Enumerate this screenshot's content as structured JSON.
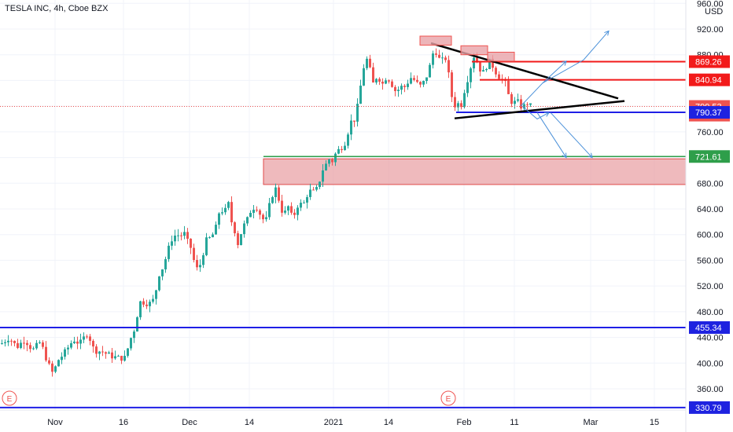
{
  "header": {
    "title": "TESLA INC, 4h, Cboe BZX"
  },
  "axis": {
    "currency": "USD"
  },
  "colors": {
    "up": "#26a69a",
    "down": "#ef5350",
    "support_line": "#1f1fe6",
    "resistance_line": "#f21a1a",
    "price_tag": "#ef5350",
    "green_tag": "#2e9e4a",
    "blue_tag": "#1e22e0",
    "zone_fill": "#e9a3a7",
    "projection": "#4a90d9"
  },
  "chart_data": {
    "type": "candlestick",
    "title": "TESLA INC, 4h, Cboe BZX",
    "ylabel": "USD",
    "ylim": [
      320,
      965
    ],
    "xlim": [
      0,
      932
    ],
    "y_ticks": [
      "960.00",
      "920.00",
      "880.00",
      "840.00",
      "800.00",
      "760.00",
      "720.00",
      "680.00",
      "640.00",
      "600.00",
      "560.00",
      "520.00",
      "480.00",
      "440.00",
      "400.00",
      "360.00"
    ],
    "x_ticks": [
      {
        "label": "Nov",
        "x": 70
      },
      {
        "label": "16",
        "x": 157
      },
      {
        "label": "Dec",
        "x": 241
      },
      {
        "label": "14",
        "x": 317
      },
      {
        "label": "2021",
        "x": 424
      },
      {
        "label": "14",
        "x": 494
      },
      {
        "label": "Feb",
        "x": 590
      },
      {
        "label": "11",
        "x": 654
      },
      {
        "label": "Mar",
        "x": 751
      },
      {
        "label": "15",
        "x": 832
      }
    ],
    "price_levels": [
      {
        "label": "869.26",
        "value": 869.26,
        "kind": "resistance"
      },
      {
        "label": "840.94",
        "value": 840.94,
        "kind": "resistance"
      },
      {
        "label": "799.53",
        "value": 799.53,
        "kind": "last"
      },
      {
        "label": "01:10:29",
        "value": 786.0,
        "kind": "countdown"
      },
      {
        "label": "790.37",
        "value": 790.37,
        "kind": "support"
      },
      {
        "label": "721.61",
        "value": 721.61,
        "kind": "green"
      },
      {
        "label": "455.34",
        "value": 455.34,
        "kind": "support"
      },
      {
        "label": "330.79",
        "value": 330.79,
        "kind": "support"
      }
    ],
    "zone": {
      "from": 678,
      "to": 718,
      "x_start": 335
    },
    "events": [
      {
        "label": "E",
        "x": 12
      },
      {
        "label": "E",
        "x": 570
      }
    ],
    "waypoints": [
      [
        0,
        430
      ],
      [
        10,
        440
      ],
      [
        20,
        425
      ],
      [
        30,
        437
      ],
      [
        40,
        420
      ],
      [
        50,
        433
      ],
      [
        60,
        398
      ],
      [
        66,
        383
      ],
      [
        72,
        404
      ],
      [
        80,
        415
      ],
      [
        92,
        437
      ],
      [
        100,
        430
      ],
      [
        110,
        448
      ],
      [
        118,
        420
      ],
      [
        128,
        418
      ],
      [
        138,
        412
      ],
      [
        148,
        408
      ],
      [
        158,
        408
      ],
      [
        163,
        433
      ],
      [
        170,
        455
      ],
      [
        176,
        495
      ],
      [
        182,
        495
      ],
      [
        188,
        492
      ],
      [
        195,
        500
      ],
      [
        200,
        537
      ],
      [
        206,
        550
      ],
      [
        212,
        575
      ],
      [
        218,
        597
      ],
      [
        224,
        600
      ],
      [
        228,
        597
      ],
      [
        232,
        605
      ],
      [
        236,
        590
      ],
      [
        240,
        585
      ],
      [
        248,
        545
      ],
      [
        254,
        555
      ],
      [
        260,
        590
      ],
      [
        266,
        595
      ],
      [
        272,
        605
      ],
      [
        278,
        640
      ],
      [
        284,
        635
      ],
      [
        290,
        650
      ],
      [
        294,
        610
      ],
      [
        298,
        605
      ],
      [
        302,
        580
      ],
      [
        306,
        610
      ],
      [
        312,
        620
      ],
      [
        318,
        640
      ],
      [
        324,
        645
      ],
      [
        330,
        630
      ],
      [
        336,
        618
      ],
      [
        342,
        650
      ],
      [
        348,
        675
      ],
      [
        352,
        660
      ],
      [
        356,
        640
      ],
      [
        360,
        630
      ],
      [
        364,
        648
      ],
      [
        368,
        630
      ],
      [
        372,
        628
      ],
      [
        376,
        645
      ],
      [
        380,
        648
      ],
      [
        384,
        645
      ],
      [
        388,
        660
      ],
      [
        392,
        668
      ],
      [
        396,
        666
      ],
      [
        400,
        667
      ],
      [
        404,
        680
      ],
      [
        408,
        700
      ],
      [
        412,
        706
      ],
      [
        416,
        719
      ],
      [
        420,
        712
      ],
      [
        426,
        728
      ],
      [
        432,
        735
      ],
      [
        438,
        745
      ],
      [
        444,
        775
      ],
      [
        450,
        780
      ],
      [
        454,
        805
      ],
      [
        458,
        840
      ],
      [
        462,
        868
      ],
      [
        466,
        874
      ],
      [
        470,
        850
      ],
      [
        474,
        830
      ],
      [
        478,
        850
      ],
      [
        482,
        840
      ],
      [
        486,
        833
      ],
      [
        490,
        848
      ],
      [
        496,
        836
      ],
      [
        502,
        822
      ],
      [
        508,
        830
      ],
      [
        514,
        830
      ],
      [
        520,
        845
      ],
      [
        526,
        840
      ],
      [
        532,
        830
      ],
      [
        538,
        838
      ],
      [
        544,
        856
      ],
      [
        548,
        880
      ],
      [
        552,
        888
      ],
      [
        556,
        875
      ],
      [
        560,
        868
      ],
      [
        564,
        880
      ],
      [
        568,
        858
      ],
      [
        572,
        820
      ],
      [
        576,
        800
      ],
      [
        580,
        806
      ],
      [
        584,
        797
      ],
      [
        588,
        820
      ],
      [
        592,
        838
      ],
      [
        596,
        855
      ],
      [
        600,
        880
      ],
      [
        604,
        872
      ],
      [
        608,
        860
      ],
      [
        612,
        850
      ],
      [
        616,
        860
      ],
      [
        620,
        870
      ],
      [
        624,
        865
      ],
      [
        628,
        855
      ],
      [
        632,
        848
      ],
      [
        636,
        842
      ],
      [
        640,
        840
      ],
      [
        644,
        820
      ],
      [
        648,
        808
      ],
      [
        652,
        805
      ],
      [
        656,
        808
      ],
      [
        660,
        800
      ],
      [
        664,
        798
      ],
      [
        668,
        806
      ],
      [
        672,
        800
      ],
      [
        676,
        800
      ]
    ]
  }
}
